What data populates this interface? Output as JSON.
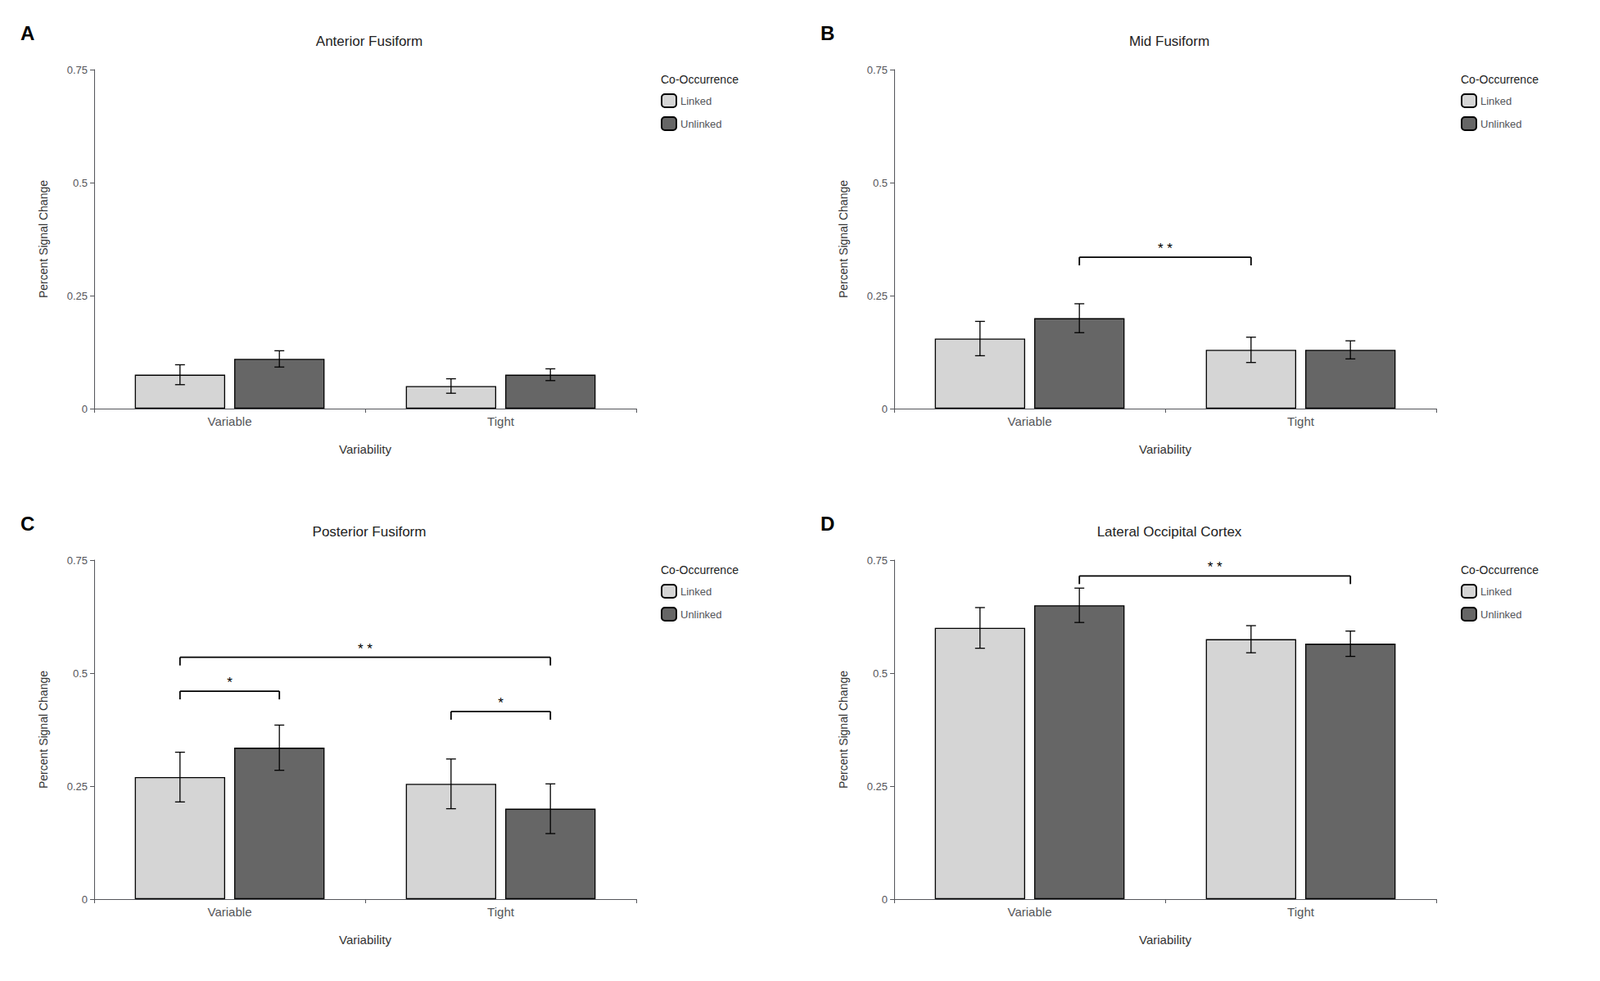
{
  "chart_data": [
    {
      "type": "bar",
      "label": "A",
      "title": "Anterior Fusiform",
      "categories": [
        "Variable",
        "Tight"
      ],
      "xlabel": "Variability",
      "ylabel": "Percent Signal Change",
      "ylim": [
        0,
        0.75
      ],
      "yticks": [
        0,
        0.25,
        0.5,
        0.75
      ],
      "grid": false,
      "legend": "upper right",
      "legend_title": "Co-Occurrence",
      "series": [
        {
          "name": "Linked",
          "color": "#d5d5d5",
          "values": [
            0.075,
            0.05
          ],
          "errors": [
            0.022,
            0.016
          ]
        },
        {
          "name": "Unlinked",
          "color": "#666666",
          "values": [
            0.11,
            0.075
          ],
          "errors": [
            0.018,
            0.013
          ]
        }
      ],
      "annotations": []
    },
    {
      "type": "bar",
      "label": "B",
      "title": "Mid Fusiform",
      "categories": [
        "Variable",
        "Tight"
      ],
      "xlabel": "Variability",
      "ylabel": "Percent Signal Change",
      "ylim": [
        0,
        0.75
      ],
      "yticks": [
        0,
        0.25,
        0.5,
        0.75
      ],
      "grid": false,
      "legend": "upper right",
      "legend_title": "Co-Occurrence",
      "series": [
        {
          "name": "Linked",
          "color": "#d5d5d5",
          "values": [
            0.155,
            0.13
          ],
          "errors": [
            0.038,
            0.028
          ]
        },
        {
          "name": "Unlinked",
          "color": "#666666",
          "values": [
            0.2,
            0.13
          ],
          "errors": [
            0.032,
            0.02
          ]
        }
      ],
      "annotations": [
        {
          "type": "bracket",
          "from": {
            "category": "Variable",
            "series": "Unlinked"
          },
          "to": {
            "category": "Tight",
            "series": "Linked"
          },
          "y": 0.335,
          "label": "* *"
        }
      ]
    },
    {
      "type": "bar",
      "label": "C",
      "title": "Posterior Fusiform",
      "categories": [
        "Variable",
        "Tight"
      ],
      "xlabel": "Variability",
      "ylabel": "Percent Signal Change",
      "ylim": [
        0,
        0.75
      ],
      "yticks": [
        0,
        0.25,
        0.5,
        0.75
      ],
      "grid": false,
      "legend": "upper right",
      "legend_title": "Co-Occurrence",
      "series": [
        {
          "name": "Linked",
          "color": "#d5d5d5",
          "values": [
            0.27,
            0.255
          ],
          "errors": [
            0.055,
            0.055
          ]
        },
        {
          "name": "Unlinked",
          "color": "#666666",
          "values": [
            0.335,
            0.2
          ],
          "errors": [
            0.05,
            0.055
          ]
        }
      ],
      "annotations": [
        {
          "type": "bracket",
          "from": {
            "category": "Variable",
            "series": "Linked"
          },
          "to": {
            "category": "Tight",
            "series": "Unlinked"
          },
          "y": 0.535,
          "label": "* *"
        },
        {
          "type": "bracket",
          "from": {
            "category": "Variable",
            "series": "Linked"
          },
          "to": {
            "category": "Variable",
            "series": "Unlinked"
          },
          "y": 0.46,
          "label": "*"
        },
        {
          "type": "bracket",
          "from": {
            "category": "Tight",
            "series": "Linked"
          },
          "to": {
            "category": "Tight",
            "series": "Unlinked"
          },
          "y": 0.415,
          "label": "*"
        }
      ]
    },
    {
      "type": "bar",
      "label": "D",
      "title": "Lateral Occipital Cortex",
      "categories": [
        "Variable",
        "Tight"
      ],
      "xlabel": "Variability",
      "ylabel": "Percent Signal Change",
      "ylim": [
        0,
        0.75
      ],
      "yticks": [
        0,
        0.25,
        0.5,
        0.75
      ],
      "grid": false,
      "legend": "upper right",
      "legend_title": "Co-Occurrence",
      "series": [
        {
          "name": "Linked",
          "color": "#d5d5d5",
          "values": [
            0.6,
            0.575
          ],
          "errors": [
            0.045,
            0.03
          ]
        },
        {
          "name": "Unlinked",
          "color": "#666666",
          "values": [
            0.65,
            0.565
          ],
          "errors": [
            0.038,
            0.028
          ]
        }
      ],
      "annotations": [
        {
          "type": "bracket",
          "from": {
            "category": "Variable",
            "series": "Unlinked"
          },
          "to": {
            "category": "Tight",
            "series": "Unlinked"
          },
          "y": 0.715,
          "label": "* *"
        }
      ]
    }
  ]
}
